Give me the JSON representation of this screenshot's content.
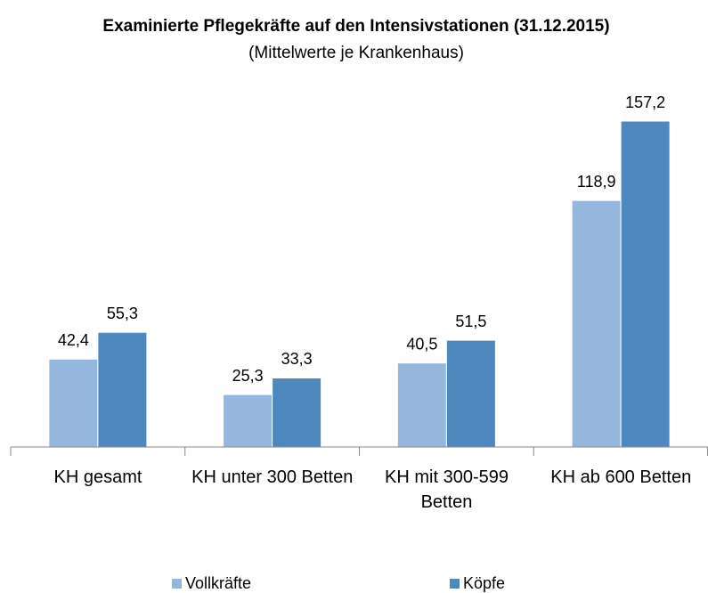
{
  "chart_data": {
    "type": "bar",
    "title": "Examinierte Pflegekräfte auf den Intensivstationen (31.12.2015)",
    "subtitle": "(Mittelwerte je Krankenhaus)",
    "categories": [
      "KH gesamt",
      "KH unter 300 Betten",
      "KH mit 300-599 Betten",
      "KH ab 600 Betten"
    ],
    "series": [
      {
        "name": "Vollkräfte",
        "color": "#95b7dd",
        "values": [
          42.4,
          25.3,
          40.5,
          118.9
        ],
        "value_labels": [
          "42,4",
          "25,3",
          "40,5",
          "118,9"
        ]
      },
      {
        "name": "Köpfe",
        "color": "#4f88bf",
        "values": [
          55.3,
          33.3,
          51.5,
          157.2
        ],
        "value_labels": [
          "55,3",
          "33,3",
          "51,5",
          "157,2"
        ]
      }
    ],
    "legend": "bottom"
  }
}
